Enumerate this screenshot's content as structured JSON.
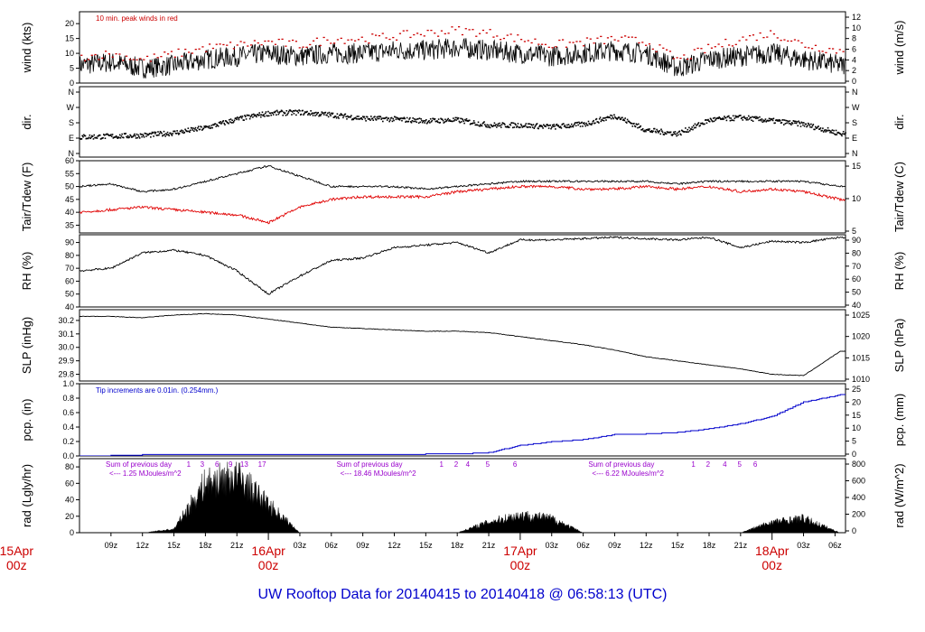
{
  "title": "UW Rooftop Data for 20140415  to  20140418 @ 06:58:13  (UTC)",
  "colors": {
    "axis": "#000000",
    "tair": "#000000",
    "tdew": "#e00000",
    "pcp": "#0000cc",
    "title": "#0000cc",
    "date": "#cc0000",
    "annot_red": "#cc0000",
    "annot_blue": "#0000cc",
    "annot_purple": "#9900cc"
  },
  "time_axis": {
    "start_hour": 6,
    "end_hour": 79,
    "hour_labels": [
      "09z",
      "12z",
      "15z",
      "18z",
      "21z",
      "03z",
      "06z",
      "09z",
      "12z",
      "15z",
      "18z",
      "21z",
      "03z",
      "06z",
      "09z",
      "12z",
      "15z",
      "18z",
      "21z",
      "03z",
      "06z"
    ],
    "date_labels": [
      {
        "hour": 0,
        "date": "15Apr",
        "time": "00z"
      },
      {
        "hour": 24,
        "date": "16Apr",
        "time": "00z"
      },
      {
        "hour": 48,
        "date": "17Apr",
        "time": "00z"
      },
      {
        "hour": 72,
        "date": "18Apr",
        "time": "00z"
      }
    ]
  },
  "panels": [
    {
      "id": "wind",
      "ylabel_left": "wind (kts)",
      "ylabel_right": "wind (m/s)",
      "ylim": [
        0,
        24
      ],
      "ticks_left": [
        "0",
        "5",
        "10",
        "15",
        "20"
      ],
      "ticks_right": [
        "0",
        "2",
        "4",
        "6",
        "8",
        "10",
        "12"
      ],
      "annotation": "10 min. peak winds in red"
    },
    {
      "id": "dir",
      "ylabel_left": "dir.",
      "ylabel_right": "dir.",
      "ticks_left": [
        "N",
        "E",
        "S",
        "W",
        "N"
      ],
      "ticks_right": [
        "N",
        "E",
        "S",
        "W",
        "N"
      ]
    },
    {
      "id": "temp",
      "ylabel_left": "Tair/Tdew (F)",
      "ylabel_right": "Tair/Tdew (C)",
      "ylim": [
        32,
        60
      ],
      "ticks_left": [
        "35",
        "40",
        "45",
        "50",
        "55",
        "60"
      ],
      "ticks_right": [
        "5",
        "10",
        "15"
      ]
    },
    {
      "id": "rh",
      "ylabel_left": "RH (%)",
      "ylabel_right": "RH (%)",
      "ylim": [
        40,
        96
      ],
      "ticks_left": [
        "40",
        "50",
        "60",
        "70",
        "80",
        "90"
      ],
      "ticks_right": [
        "40",
        "50",
        "60",
        "70",
        "80",
        "90"
      ]
    },
    {
      "id": "slp",
      "ylabel_left": "SLP (inHg)",
      "ylabel_right": "SLP (hPa)",
      "ylim": [
        29.75,
        30.28
      ],
      "ticks_left": [
        "29.8",
        "29.9",
        "30.0",
        "30.1",
        "30.2"
      ],
      "ticks_right": [
        "1010",
        "1015",
        "1020",
        "1025"
      ]
    },
    {
      "id": "pcp",
      "ylabel_left": "pcp. (in)",
      "ylabel_right": "pcp. (mm)",
      "ylim": [
        0,
        1.0
      ],
      "ticks_left": [
        "0.0",
        "0.2",
        "0.4",
        "0.6",
        "0.8",
        "1.0"
      ],
      "ticks_right": [
        "0",
        "5",
        "10",
        "15",
        "20",
        "25"
      ],
      "annotation": "Tip increments are 0.01in. (0.254mm.)"
    },
    {
      "id": "rad",
      "ylabel_left": "rad (Lgly/hr)",
      "ylabel_right": "rad (W/m^2)",
      "ylim": [
        0,
        90
      ],
      "ticks_left": [
        "0",
        "20",
        "40",
        "60",
        "80"
      ],
      "ticks_right": [
        "0",
        "200",
        "400",
        "600",
        "800"
      ]
    }
  ],
  "rad_annotations": [
    {
      "line1": "Sum of previous day",
      "line2": "<--- 1.25 MJoules/m^2",
      "hour": 8.5
    },
    {
      "line1": "Sum of previous day",
      "line2": "<--- 18.46 MJoules/m^2",
      "hour": 30.5
    },
    {
      "line1": "Sum of previous day",
      "line2": "<--- 6.22 MJoules/m^2",
      "hour": 54.5
    }
  ],
  "uv_index_marks": [
    {
      "hour": 16.4,
      "label": "1"
    },
    {
      "hour": 17.7,
      "label": "3"
    },
    {
      "hour": 19.1,
      "label": "6"
    },
    {
      "hour": 20.4,
      "label": "9"
    },
    {
      "hour": 21.7,
      "label": "13"
    },
    {
      "hour": 23.4,
      "label": "17"
    },
    {
      "hour": 40.5,
      "label": "1"
    },
    {
      "hour": 41.9,
      "label": "2"
    },
    {
      "hour": 43.0,
      "label": "4"
    },
    {
      "hour": 44.9,
      "label": "5"
    },
    {
      "hour": 47.5,
      "label": "6"
    },
    {
      "hour": 64.5,
      "label": "1"
    },
    {
      "hour": 65.9,
      "label": "2"
    },
    {
      "hour": 67.5,
      "label": "4"
    },
    {
      "hour": 68.9,
      "label": "5"
    },
    {
      "hour": 70.4,
      "label": "6"
    }
  ],
  "chart_data": {
    "type": "line",
    "x_unit": "hour since 20140415 00z",
    "x": [
      6,
      9,
      12,
      15,
      18,
      21,
      24,
      27,
      30,
      33,
      36,
      39,
      42,
      45,
      48,
      51,
      54,
      57,
      60,
      63,
      66,
      69,
      72,
      75,
      78.5
    ],
    "series": [
      {
        "name": "wind",
        "panel": "wind",
        "values": [
          6,
          7,
          5,
          6,
          8,
          9,
          10,
          9,
          10,
          10,
          11,
          11,
          12,
          11,
          10,
          9,
          10,
          11,
          10,
          5,
          8,
          9,
          10,
          8,
          6
        ]
      },
      {
        "name": "10 min. peak winds",
        "panel": "wind",
        "values": [
          9,
          10,
          8,
          10,
          12,
          13,
          14,
          13,
          15,
          15,
          16,
          17,
          18,
          17,
          15,
          13,
          14,
          15,
          14,
          8,
          12,
          15,
          17,
          13,
          11
        ]
      },
      {
        "name": "dir",
        "panel": "dir",
        "values": [
          100,
          105,
          110,
          125,
          155,
          205,
          240,
          245,
          230,
          210,
          205,
          195,
          200,
          170,
          170,
          160,
          175,
          225,
          140,
          120,
          200,
          215,
          195,
          175,
          120
        ]
      },
      {
        "name": "Tair",
        "panel": "temp",
        "values": [
          50,
          51,
          48,
          49,
          52,
          55,
          58,
          54,
          50,
          50,
          50,
          49,
          50,
          51,
          52,
          52,
          52,
          52,
          52,
          51,
          52,
          52,
          52,
          52,
          50
        ]
      },
      {
        "name": "Tdew",
        "panel": "temp",
        "values": [
          40,
          41,
          42,
          41,
          40,
          39,
          36,
          42,
          45,
          46,
          46,
          46,
          48,
          49,
          50,
          50,
          49,
          49,
          50,
          49,
          50,
          48,
          49,
          48,
          45
        ]
      },
      {
        "name": "RH",
        "panel": "rh",
        "values": [
          68,
          70,
          82,
          84,
          80,
          68,
          50,
          64,
          76,
          78,
          86,
          88,
          90,
          82,
          92,
          92,
          93,
          94,
          93,
          92,
          94,
          86,
          91,
          90,
          94
        ]
      },
      {
        "name": "SLP",
        "panel": "slp",
        "values": [
          30.23,
          30.23,
          30.22,
          30.24,
          30.25,
          30.24,
          30.21,
          30.18,
          30.15,
          30.14,
          30.13,
          30.12,
          30.12,
          30.11,
          30.08,
          30.05,
          30.02,
          29.98,
          29.93,
          29.9,
          29.87,
          29.84,
          29.8,
          29.79,
          29.97
        ]
      },
      {
        "name": "pcp",
        "panel": "pcp",
        "values": [
          0.0,
          0.01,
          0.02,
          0.02,
          0.02,
          0.02,
          0.02,
          0.02,
          0.02,
          0.02,
          0.02,
          0.03,
          0.03,
          0.05,
          0.15,
          0.2,
          0.23,
          0.3,
          0.31,
          0.33,
          0.38,
          0.45,
          0.55,
          0.75,
          0.85
        ]
      },
      {
        "name": "rad",
        "panel": "rad",
        "values": [
          0,
          0,
          0,
          5,
          70,
          80,
          40,
          0,
          0,
          0,
          0,
          0,
          0,
          15,
          25,
          20,
          0,
          0,
          0,
          0,
          0,
          0,
          15,
          20,
          0
        ]
      }
    ]
  }
}
